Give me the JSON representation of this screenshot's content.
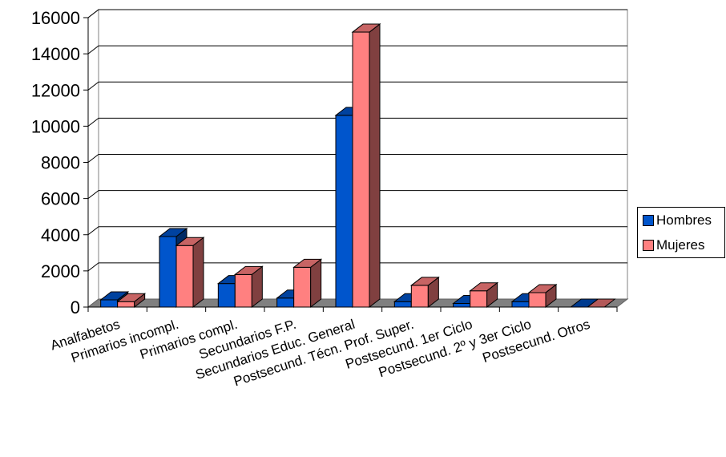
{
  "chart_data": {
    "type": "bar",
    "bar_style": "3d-clustered",
    "categories": [
      "Analfabetos",
      "Primarios incompl.",
      "Primarios compl.",
      "Secundarios F.P.",
      "Secundarios Educ. General",
      "Postsecund. Técn. Prof. Super.",
      "Postsecund. 1er Ciclo",
      "Postsecund. 2º y 3er Ciclo",
      "Postsecund. Otros"
    ],
    "series": [
      {
        "name": "Hombres",
        "color": "#0055cc",
        "values": [
          400,
          3900,
          1300,
          500,
          10600,
          300,
          200,
          300,
          0
        ]
      },
      {
        "name": "Mujeres",
        "color": "#ff8080",
        "values": [
          300,
          3400,
          1800,
          2200,
          15200,
          1200,
          900,
          800,
          0
        ]
      }
    ],
    "ylim": [
      0,
      16000
    ],
    "yticks": [
      "0",
      "2000",
      "4000",
      "6000",
      "8000",
      "10000",
      "12000",
      "14000",
      "16000"
    ],
    "grid": true,
    "legend_position": "right",
    "title": "",
    "xlabel": "",
    "ylabel": ""
  }
}
